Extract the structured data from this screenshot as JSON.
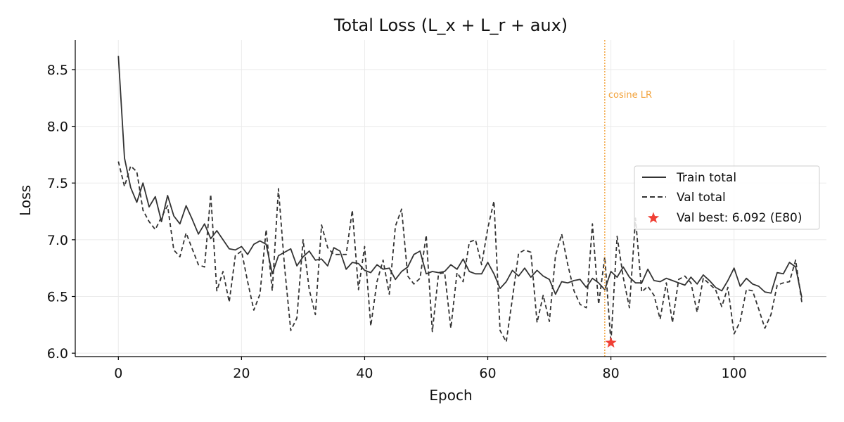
{
  "chart_data": {
    "type": "line",
    "title": "Total Loss (L_x + L_r + aux)",
    "xlabel": "Epoch",
    "ylabel": "Loss",
    "xlim": [
      -7,
      115
    ],
    "ylim": [
      5.97,
      8.76
    ],
    "xticks": [
      0,
      20,
      40,
      60,
      80,
      100
    ],
    "yticks": [
      6.0,
      6.5,
      7.0,
      7.5,
      8.0,
      8.5
    ],
    "xtick_labels": [
      "0",
      "20",
      "40",
      "60",
      "80",
      "100"
    ],
    "ytick_labels": [
      "6.0",
      "6.5",
      "7.0",
      "7.5",
      "8.0",
      "8.5"
    ],
    "grid": true,
    "legend_position": "center-right",
    "series": [
      {
        "name": "Train total",
        "style": "solid",
        "color": "#333333",
        "x_start": 0,
        "values": [
          8.62,
          7.72,
          7.46,
          7.33,
          7.5,
          7.29,
          7.38,
          7.16,
          7.39,
          7.21,
          7.14,
          7.3,
          7.18,
          7.05,
          7.14,
          7.01,
          7.08,
          7.0,
          6.92,
          6.91,
          6.94,
          6.87,
          6.96,
          6.99,
          6.96,
          6.7,
          6.86,
          6.89,
          6.92,
          6.77,
          6.85,
          6.9,
          6.82,
          6.83,
          6.77,
          6.93,
          6.9,
          6.74,
          6.8,
          6.79,
          6.73,
          6.71,
          6.78,
          6.74,
          6.75,
          6.65,
          6.72,
          6.76,
          6.87,
          6.9,
          6.7,
          6.72,
          6.71,
          6.72,
          6.78,
          6.74,
          6.83,
          6.72,
          6.7,
          6.7,
          6.8,
          6.7,
          6.57,
          6.63,
          6.73,
          6.68,
          6.75,
          6.67,
          6.73,
          6.68,
          6.65,
          6.52,
          6.63,
          6.62,
          6.64,
          6.65,
          6.58,
          6.66,
          6.62,
          6.56,
          6.72,
          6.67,
          6.76,
          6.67,
          6.62,
          6.62,
          6.74,
          6.64,
          6.63,
          6.66,
          6.64,
          6.62,
          6.6,
          6.67,
          6.61,
          6.69,
          6.64,
          6.58,
          6.55,
          6.64,
          6.75,
          6.59,
          6.66,
          6.61,
          6.59,
          6.54,
          6.53,
          6.71,
          6.7,
          6.8,
          6.76,
          6.49
        ]
      },
      {
        "name": "Val total",
        "style": "dashed",
        "color": "#333333",
        "x_start": 0,
        "values": [
          7.69,
          7.47,
          7.65,
          7.6,
          7.26,
          7.16,
          7.09,
          7.2,
          7.3,
          6.91,
          6.85,
          7.06,
          6.92,
          6.78,
          6.76,
          7.4,
          6.55,
          6.72,
          6.45,
          6.86,
          6.9,
          6.63,
          6.38,
          6.52,
          7.09,
          6.55,
          7.45,
          6.76,
          6.2,
          6.31,
          7.0,
          6.56,
          6.34,
          7.13,
          6.93,
          6.87,
          6.87,
          6.87,
          7.26,
          6.56,
          6.94,
          6.24,
          6.63,
          6.82,
          6.52,
          7.12,
          7.27,
          6.68,
          6.61,
          6.66,
          7.04,
          6.19,
          6.7,
          6.71,
          6.22,
          6.71,
          6.63,
          6.98,
          7.0,
          6.78,
          7.1,
          7.34,
          6.2,
          6.1,
          6.48,
          6.88,
          6.91,
          6.89,
          6.27,
          6.51,
          6.28,
          6.86,
          7.05,
          6.78,
          6.55,
          6.43,
          6.4,
          7.14,
          6.43,
          6.85,
          6.09,
          7.03,
          6.67,
          6.4,
          7.19,
          6.54,
          6.59,
          6.51,
          6.3,
          6.62,
          6.27,
          6.65,
          6.68,
          6.62,
          6.36,
          6.66,
          6.61,
          6.56,
          6.41,
          6.58,
          6.17,
          6.28,
          6.56,
          6.55,
          6.39,
          6.22,
          6.34,
          6.6,
          6.62,
          6.63,
          6.82,
          6.45
        ]
      }
    ],
    "best_marker": {
      "label": "Val best: 6.092 (E80)",
      "x": 80,
      "y": 6.092,
      "color": "#f04035",
      "marker": "star"
    },
    "vline": {
      "x": 79,
      "label": "cosine LR",
      "color": "#f2a23a",
      "style": "dotted"
    }
  }
}
